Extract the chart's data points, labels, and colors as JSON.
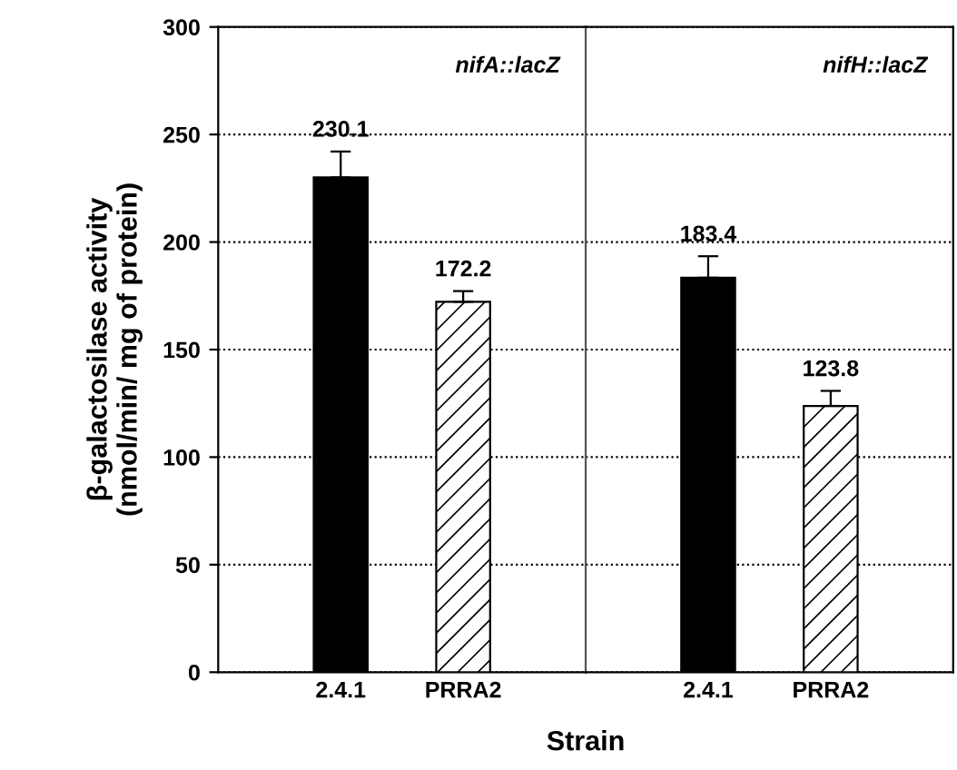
{
  "chart_data": [
    {
      "type": "bar",
      "categories": [
        "2.4.1",
        "PRRA2"
      ],
      "values": [
        230.1,
        172.2
      ],
      "colors": [
        "#000000",
        "#ffffff"
      ],
      "errors": [
        [
          230.1,
          242.1
        ],
        [
          172.2,
          177.2
        ]
      ],
      "data_labels": true,
      "ylabel": "β-galactosilase activity\n(nmol/min/ mg of protein)",
      "xlabel": "Strain",
      "ylim": [
        0,
        300
      ],
      "yticks": [
        0,
        50,
        100,
        150,
        200,
        250,
        300
      ],
      "grid": "y",
      "annotations": [
        "nifA::lacZ"
      ]
    },
    {
      "type": "bar",
      "categories": [
        "2.4.1",
        "PRRA2"
      ],
      "values": [
        183.4,
        123.8
      ],
      "colors": [
        "#000000",
        "#ffffff"
      ],
      "errors": [
        [
          183.4,
          193.4
        ],
        [
          123.8,
          130.8
        ]
      ],
      "data_labels": true,
      "ylim": [
        0,
        300
      ],
      "yticks": [
        0,
        50,
        100,
        150,
        200,
        250,
        300
      ],
      "grid": "y",
      "tick_labels": "x",
      "annotations": [
        "nifH::lacZ"
      ]
    }
  ]
}
